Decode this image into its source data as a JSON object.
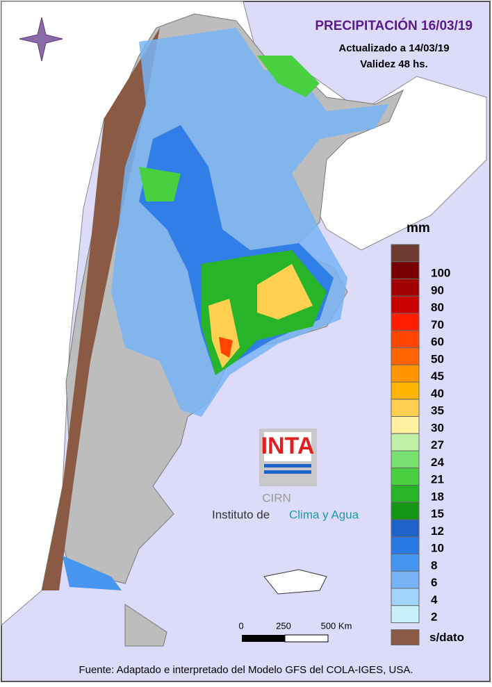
{
  "header": {
    "title": "PRECIPITACIÓN 16/03/19",
    "updated": "Actualizado a 14/03/19",
    "validity": "Validez 48 hs."
  },
  "legend": {
    "unit": "mm",
    "top_color": "#6e3c32",
    "items": [
      {
        "label": 100,
        "color": "#780000"
      },
      {
        "label": 90,
        "color": "#a00000"
      },
      {
        "label": 80,
        "color": "#c80000"
      },
      {
        "label": 70,
        "color": "#ff1e00"
      },
      {
        "label": 60,
        "color": "#ff4500"
      },
      {
        "label": 50,
        "color": "#ff6400"
      },
      {
        "label": 45,
        "color": "#ff9600"
      },
      {
        "label": 40,
        "color": "#ffb400"
      },
      {
        "label": 35,
        "color": "#ffd050"
      },
      {
        "label": 30,
        "color": "#fff0a0"
      },
      {
        "label": 27,
        "color": "#c0f0a8"
      },
      {
        "label": 24,
        "color": "#78e070"
      },
      {
        "label": 21,
        "color": "#48d040"
      },
      {
        "label": 18,
        "color": "#28b428"
      },
      {
        "label": 15,
        "color": "#149614"
      },
      {
        "label": 12,
        "color": "#1e64c8"
      },
      {
        "label": 10,
        "color": "#2878e6"
      },
      {
        "label": 8,
        "color": "#4696f0"
      },
      {
        "label": 6,
        "color": "#78b4f5"
      },
      {
        "label": 4,
        "color": "#a0d2fa"
      },
      {
        "label": 2,
        "color": "#c8f0fa"
      }
    ],
    "no_data_label": "s/dato"
  },
  "scale_bar": {
    "labels": [
      "0",
      "250",
      "500 Km"
    ]
  },
  "logo": {
    "brand": "INTA",
    "center": "CIRN",
    "institute_prefix": "Instituto de",
    "institute_name": "Clima y Agua"
  },
  "footer": "Fuente: Adaptado e interpretado del Modelo GFS del COLA-IGES, USA."
}
